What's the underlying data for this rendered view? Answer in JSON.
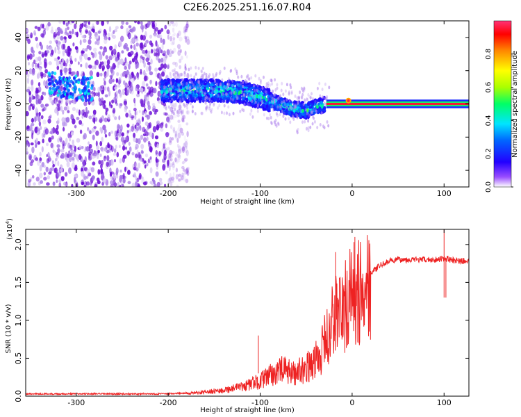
{
  "title": "C2E6.2025.251.16.07.R04",
  "chart_data": [
    {
      "type": "heatmap",
      "name": "spectrogram",
      "xlabel": "Height of straight line (km)",
      "ylabel": "Frequency (Hz)",
      "xlim": [
        -355,
        127
      ],
      "ylim": [
        -50,
        50
      ],
      "xticks": [
        -300,
        -200,
        -100,
        0,
        100
      ],
      "yticks": [
        -40,
        -20,
        0,
        20,
        40
      ],
      "xtick_labels": [
        "-300",
        "-200",
        "-100",
        "0",
        "100"
      ],
      "ytick_labels": [
        "-40",
        "-20",
        "0",
        "20",
        "40"
      ],
      "colorbar": {
        "label": "Normalized spectral amplitude",
        "range": [
          0,
          1
        ],
        "ticks": [
          0.0,
          0.2,
          0.4,
          0.6,
          0.8
        ],
        "tick_labels": [
          "0.0",
          "0.2",
          "0.4",
          "0.6",
          "0.8"
        ],
        "colors": [
          "#ffffff",
          "#6600cc",
          "#0000ff",
          "#00d0ff",
          "#00ff66",
          "#aaff00",
          "#ffff00",
          "#ff8800",
          "#ff0000",
          "#ff3366"
        ]
      },
      "features": {
        "noise_region_x": [
          -355,
          -200
        ],
        "signal_trace": [
          {
            "x": -325,
            "f": 12,
            "a": 0.3
          },
          {
            "x": -305,
            "f": 10,
            "a": 0.35
          },
          {
            "x": -290,
            "f": 9,
            "a": 0.3
          },
          {
            "x": -200,
            "f": 8,
            "a": 0.4
          },
          {
            "x": -175,
            "f": 8,
            "a": 0.45
          },
          {
            "x": -150,
            "f": 8,
            "a": 0.45
          },
          {
            "x": -120,
            "f": 7,
            "a": 0.45
          },
          {
            "x": -100,
            "f": 4,
            "a": 0.4
          },
          {
            "x": -80,
            "f": 0,
            "a": 0.4
          },
          {
            "x": -65,
            "f": -3,
            "a": 0.45
          },
          {
            "x": -50,
            "f": -4,
            "a": 0.45
          },
          {
            "x": -35,
            "f": -1,
            "a": 0.4
          },
          {
            "x": -20,
            "f": 0,
            "a": 0.6
          },
          {
            "x": -5,
            "f": 1,
            "a": 0.9
          },
          {
            "x": 30,
            "f": 0,
            "a": 1.0
          },
          {
            "x": 127,
            "f": 0,
            "a": 1.0
          }
        ]
      }
    },
    {
      "type": "line",
      "name": "snr",
      "xlabel": "Height of straight line (km)",
      "ylabel": "SNR (10 * v/v)",
      "y_multiplier_label": "(x10",
      "y_multiplier_exp": "4",
      "y_multiplier_close": ")",
      "xlim": [
        -355,
        127
      ],
      "ylim": [
        0,
        2.2
      ],
      "xticks": [
        -300,
        -200,
        -100,
        0,
        100
      ],
      "yticks": [
        0.0,
        0.5,
        1.0,
        1.5,
        2.0
      ],
      "xtick_labels": [
        "-300",
        "-200",
        "-100",
        "0",
        "100"
      ],
      "ytick_labels": [
        "0.0",
        "0.5",
        "1.0",
        "1.5",
        "2.0"
      ],
      "color": "#ee2222",
      "series": [
        {
          "name": "SNR",
          "x": [
            -355,
            -320,
            -280,
            -240,
            -200,
            -180,
            -160,
            -140,
            -120,
            -100,
            -85,
            -75,
            -65,
            -55,
            -45,
            -35,
            -28,
            -22,
            -18,
            -14,
            -10,
            -6,
            -2,
            2,
            6,
            10,
            14,
            20,
            30,
            40,
            50,
            70,
            90,
            100,
            110,
            127
          ],
          "y": [
            0.02,
            0.02,
            0.02,
            0.02,
            0.02,
            0.03,
            0.05,
            0.08,
            0.12,
            0.2,
            0.3,
            0.35,
            0.3,
            0.35,
            0.4,
            0.55,
            0.75,
            0.95,
            1.1,
            1.15,
            1.1,
            1.2,
            1.3,
            1.35,
            1.3,
            1.4,
            1.5,
            1.62,
            1.72,
            1.78,
            1.8,
            1.8,
            1.8,
            1.82,
            1.79,
            1.78
          ]
        }
      ]
    }
  ]
}
